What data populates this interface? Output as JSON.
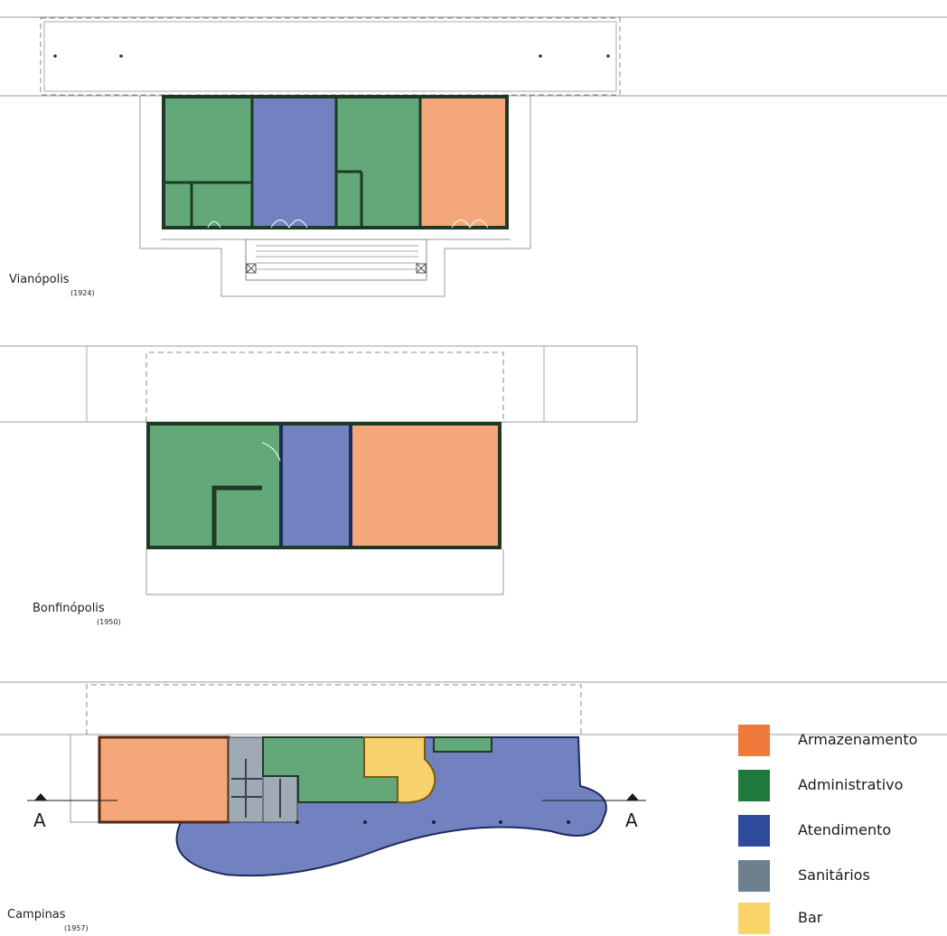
{
  "plans": [
    {
      "name": "Vianópolis",
      "year": "(1924)"
    },
    {
      "name": "Bonfinópolis",
      "year": "(1950)"
    },
    {
      "name": "Campinas",
      "year": "(1957)"
    }
  ],
  "section_marker": "A",
  "legend": [
    {
      "label": "Armazenamento",
      "color": "#f07a3c"
    },
    {
      "label": "Administrativo",
      "color": "#1e7a3c"
    },
    {
      "label": "Atendimento",
      "color": "#2f4a9c"
    },
    {
      "label": "Sanitários",
      "color": "#6c8090"
    },
    {
      "label": "Bar",
      "color": "#fad66a"
    }
  ],
  "fill_colors": {
    "armazenamento": "#f3a77a",
    "administrativo": "#62a878",
    "atendimento": "#7282c0",
    "sanitarios": "#a0aab4",
    "bar": "#f7d26c"
  }
}
